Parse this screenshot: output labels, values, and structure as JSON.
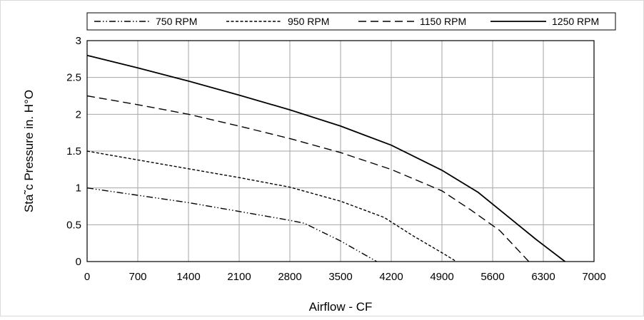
{
  "chart_data": {
    "type": "line",
    "title": "",
    "xlabel": "Airflow - CF",
    "ylabel": "Sta˜c Pressure in. H°O",
    "xlim": [
      0,
      7000
    ],
    "ylim": [
      0,
      3
    ],
    "x_ticks": [
      0,
      700,
      1400,
      2100,
      2800,
      3500,
      4200,
      4900,
      5600,
      6300,
      7000
    ],
    "y_ticks": [
      0,
      0.5,
      1,
      1.5,
      2,
      2.5,
      3
    ],
    "x_tick_labels": [
      "0",
      "700",
      "1400",
      "2100",
      "2800",
      "3500",
      "4200",
      "4900",
      "5600",
      "6300",
      "7000"
    ],
    "y_tick_labels": [
      "0",
      "0.5",
      "1",
      "1.5",
      "2",
      "2.5",
      "3"
    ],
    "grid": true,
    "legend_position": "top",
    "series": [
      {
        "name": "750 RPM",
        "dash": "dash-dot-dot",
        "color": "#000000",
        "x": [
          0,
          700,
          1400,
          2100,
          2800,
          3000,
          3500,
          4000
        ],
        "y": [
          1.0,
          0.9,
          0.8,
          0.68,
          0.56,
          0.52,
          0.28,
          0.0
        ]
      },
      {
        "name": "950 RPM",
        "dash": "short-dash",
        "color": "#000000",
        "x": [
          0,
          700,
          1400,
          2100,
          2800,
          3500,
          4100,
          4500,
          4900,
          5100
        ],
        "y": [
          1.5,
          1.38,
          1.26,
          1.14,
          1.01,
          0.82,
          0.6,
          0.35,
          0.12,
          0.0
        ]
      },
      {
        "name": "1150 RPM",
        "dash": "long-dash",
        "color": "#000000",
        "x": [
          0,
          700,
          1400,
          2100,
          2800,
          3500,
          4200,
          4900,
          5300,
          5700,
          6100
        ],
        "y": [
          2.25,
          2.13,
          2.0,
          1.84,
          1.67,
          1.48,
          1.25,
          0.96,
          0.7,
          0.42,
          0.0
        ]
      },
      {
        "name": "1250 RPM",
        "dash": "solid",
        "color": "#000000",
        "x": [
          0,
          700,
          1400,
          2100,
          2800,
          3500,
          4200,
          4900,
          5400,
          5800,
          6200,
          6600
        ],
        "y": [
          2.8,
          2.63,
          2.45,
          2.26,
          2.06,
          1.84,
          1.58,
          1.24,
          0.94,
          0.62,
          0.3,
          0.0
        ]
      }
    ]
  }
}
